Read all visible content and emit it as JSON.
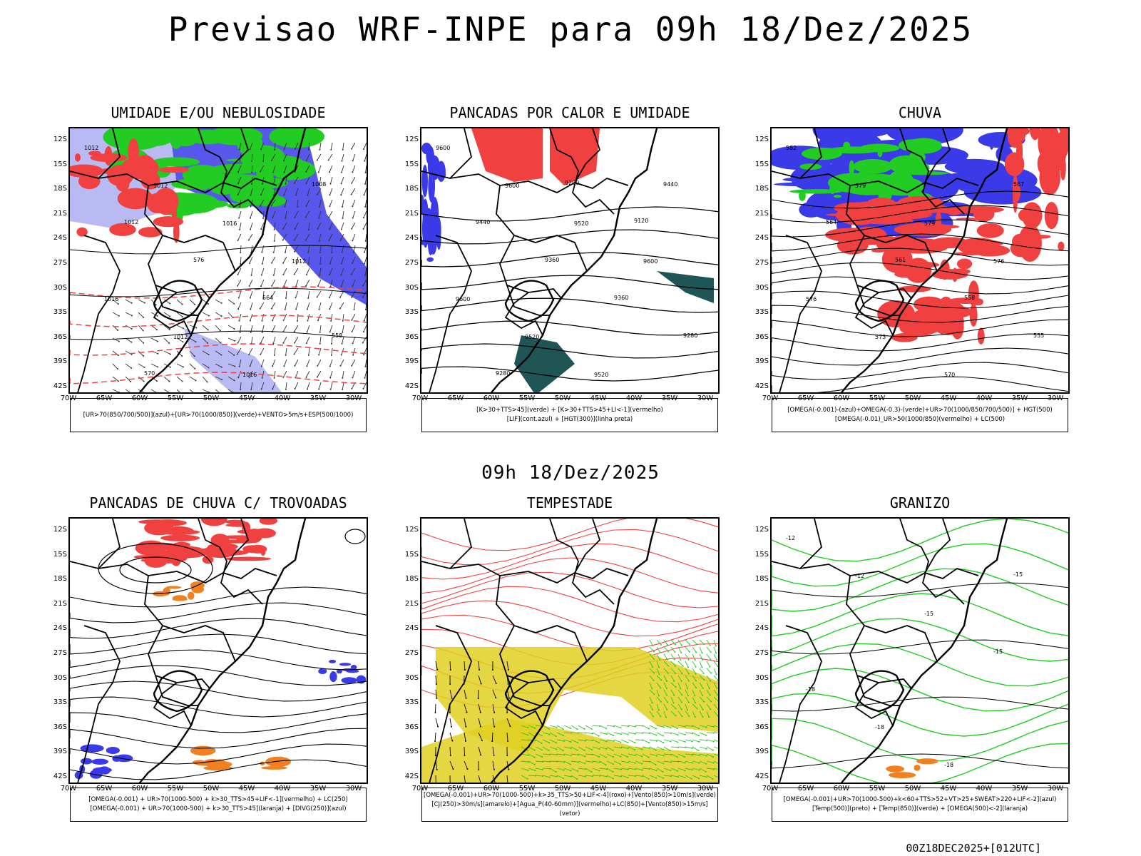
{
  "title": "Previsao WRF-INPE  para 09h 18/Dez/2025",
  "subtitle": "09h 18/Dez/2025",
  "footer": "00Z18DEC2025+[012UTC]",
  "lat_ticks": [
    "12S",
    "15S",
    "18S",
    "21S",
    "24S",
    "27S",
    "30S",
    "33S",
    "36S",
    "39S",
    "42S"
  ],
  "lon_ticks": [
    "70W",
    "65W",
    "60W",
    "55W",
    "50W",
    "45W",
    "40W",
    "35W",
    "30W"
  ],
  "panels": [
    {
      "title": "UMIDADE E/OU NEBULOSIDADE",
      "legend": [
        "[UR>70(850/700/500)](azul)+[UR>70(1000/850)](verde)+VENTO>5m/s+ESP(500/1000)"
      ],
      "contour_labels": [
        "1012",
        "1012",
        "1016",
        "1012",
        "1016",
        "1012",
        "1016",
        "1008",
        "1012",
        "576",
        "564",
        "558",
        "570"
      ]
    },
    {
      "title": "PANCADAS POR CALOR E UMIDADE",
      "legend": [
        "[K>30+TTS>45](verde) + [K>30+TTS>45+LI<-1](vermelho)",
        "[LIF](cont.azul) + [HGT(300)](linha preta)"
      ],
      "contour_labels": [
        "9600",
        "9600",
        "9520",
        "9600",
        "9600",
        "9520",
        "9520",
        "9440",
        "9440",
        "9360",
        "9360",
        "9280",
        "9280",
        "9200",
        "9120"
      ]
    },
    {
      "title": "CHUVA",
      "legend": [
        "[OMEGA(-0.001)-(azul)+OMEGA(-0.3)-(verde)+UR>70(1000/850/700/500)] + HGT(500)",
        "[OMEGA(-0.01)_UR>50(1000/850)(vermelho) + LC(500)"
      ],
      "contour_labels": [
        "582",
        "579",
        "579",
        "576",
        "576",
        "573",
        "570",
        "567",
        "564",
        "561",
        "558",
        "555"
      ]
    },
    {
      "title": "PANCADAS DE CHUVA C/ TROVOADAS",
      "legend": [
        "[OMEGA(-0.001) + UR>70(1000-500) + k>30_TTS>45+LIF<-1](vermelho) + LC(250)",
        "[OMEGA(-0.001) + UR>70(1000-500) + k>30_TTS>45](laranja) + [DIVG(250)](azul)"
      ],
      "contour_labels": []
    },
    {
      "title": "TEMPESTADE",
      "legend": [
        "[OMEGA(-0.001)+UR>70(1000-500)+k>35_TTS>50+LIF<-4](roxo)+[Vento(850)>10m/s](verde)",
        "[CJ(250)>30m/s](amarelo)+[Agua_P(40-60mm)](vermelho)+LC(850)+[Vento(850)>15m/s](vetor)"
      ],
      "contour_labels": []
    },
    {
      "title": "GRANIZO",
      "legend": [
        "[OMEGA(-0.001)+UR>70(1000-500)+k<60+TTS>52+VT>25+SWEAT>220+LIF<-2](azul)",
        "[Temp(500)](preto) + [Temp(850)](verde) + [OMEGA(500)<-2](laranja)"
      ],
      "contour_labels": [
        "-12",
        "-12",
        "-15",
        "-15",
        "-18",
        "-18",
        "-18",
        "-15"
      ]
    }
  ],
  "colors": {
    "blue": "#3a3ae8",
    "light_blue": "#9b9bf0",
    "green": "#22cc22",
    "red": "#f04040",
    "orange": "#f08020",
    "yellow": "#e0d020",
    "teal": "#1f5555",
    "black": "#000000"
  }
}
